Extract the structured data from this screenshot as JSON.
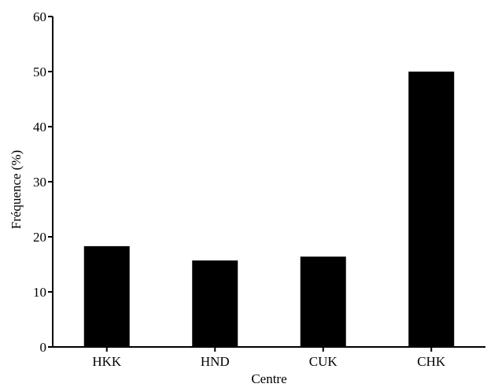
{
  "chart_data": {
    "type": "bar",
    "title": "",
    "xlabel": "Centre",
    "ylabel": "Fréquence (%)",
    "categories": [
      "HKK",
      "HND",
      "CUK",
      "CHK"
    ],
    "values": [
      18.3,
      15.7,
      16.4,
      50.0
    ],
    "ylim": [
      0,
      60
    ],
    "yticks": [
      0,
      10,
      20,
      30,
      40,
      50,
      60
    ],
    "ytick_labels": [
      "0",
      "10",
      "20",
      "30",
      "40",
      "50",
      "60"
    ],
    "grid": false,
    "legend": "none",
    "colors": {
      "bar": "#000000",
      "axis": "#000000",
      "background": "#ffffff"
    }
  }
}
